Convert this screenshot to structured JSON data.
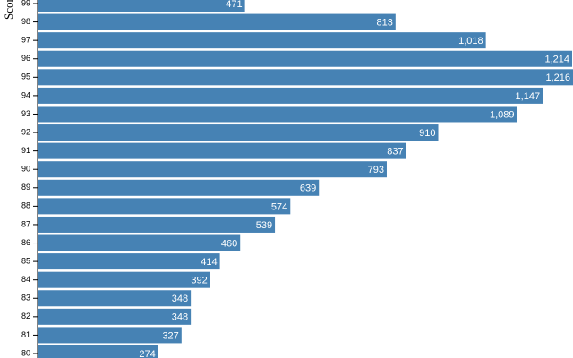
{
  "chart_data": {
    "type": "bar",
    "orientation": "horizontal",
    "y_label": "Score",
    "categories": [
      "99",
      "98",
      "97",
      "96",
      "95",
      "94",
      "93",
      "92",
      "91",
      "90",
      "89",
      "88",
      "87",
      "86",
      "85",
      "84",
      "83",
      "82",
      "81",
      "80"
    ],
    "values": [
      471,
      813,
      1018,
      1214,
      1216,
      1147,
      1089,
      910,
      837,
      793,
      639,
      574,
      539,
      460,
      414,
      392,
      348,
      348,
      327,
      274
    ],
    "value_labels": [
      "471",
      "813",
      "1,018",
      "1,214",
      "1,216",
      "1,147",
      "1,089",
      "910",
      "837",
      "793",
      "639",
      "574",
      "539",
      "460",
      "414",
      "392",
      "348",
      "348",
      "327",
      "274"
    ],
    "color": "#4682b4",
    "xlim": [
      0,
      1216
    ]
  }
}
